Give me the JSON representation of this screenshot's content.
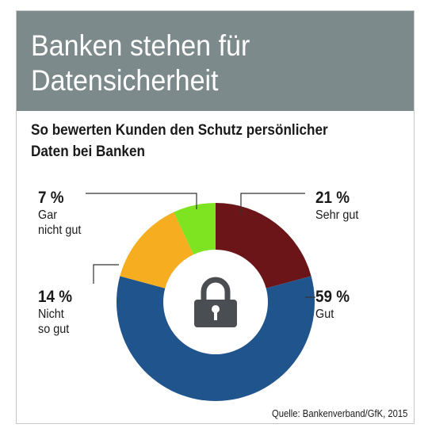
{
  "header": {
    "title": "Banken stehen für Datensicherheit",
    "subtitle": "So bewerten Kunden den Schutz persönlicher Daten bei Banken"
  },
  "icon": "lock-icon",
  "source": "Quelle: Bankenverband/GfK, 2015",
  "colors": {
    "title_band": "#7d8a8c",
    "sehr_gut": "#6b1518",
    "gut": "#1f548c",
    "nicht_so_gut": "#f6ad1f",
    "gar_nicht_gut": "#7ee321",
    "lock": "#4a4d51"
  },
  "chart_data": {
    "type": "pie",
    "donut": true,
    "categories": [
      "Sehr gut",
      "Gut",
      "Nicht so gut",
      "Gar nicht gut"
    ],
    "values": [
      21,
      59,
      14,
      7
    ],
    "unit": "%",
    "labels": {
      "sehr_gut": {
        "pct": "21 %",
        "name": "Sehr gut"
      },
      "gut": {
        "pct": "59 %",
        "name": "Gut"
      },
      "nicht_so_gut": {
        "pct": "14 %",
        "name": "Nicht\nso gut"
      },
      "gar_nicht_gut": {
        "pct": "7 %",
        "name": "Gar\nnicht gut"
      }
    }
  }
}
